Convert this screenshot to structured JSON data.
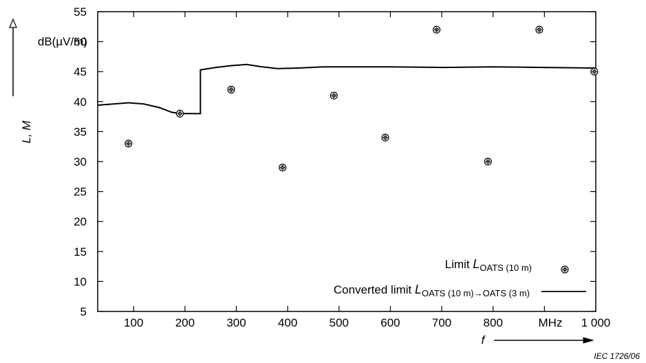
{
  "chart_data": {
    "type": "line",
    "ylabel": "L, M",
    "yunit": "dB(µV/m)",
    "xlabel": "f",
    "xunit": "MHz",
    "xlim": [
      30,
      1000
    ],
    "ylim": [
      5,
      55
    ],
    "x_ticks": [
      {
        "value": 100,
        "label": "100"
      },
      {
        "value": 200,
        "label": "200"
      },
      {
        "value": 300,
        "label": "300"
      },
      {
        "value": 400,
        "label": "400"
      },
      {
        "value": 500,
        "label": "500"
      },
      {
        "value": 600,
        "label": "600"
      },
      {
        "value": 700,
        "label": "700"
      },
      {
        "value": 800,
        "label": "800"
      },
      {
        "value": 1000,
        "label": "1 000"
      }
    ],
    "y_ticks": [
      5,
      10,
      15,
      20,
      25,
      30,
      35,
      40,
      45,
      50,
      55
    ],
    "series": [
      {
        "name": "Limit L_OATS (10 m)",
        "kind": "scatter",
        "x": [
          90,
          190,
          290,
          390,
          490,
          590,
          690,
          790,
          890,
          1000
        ],
        "y": [
          33,
          38,
          42,
          29,
          41,
          34,
          52,
          30,
          52,
          45
        ]
      },
      {
        "name": "Converted limit L_OATS (10 m)→OATS (3 m)",
        "kind": "line",
        "x": [
          30,
          60,
          90,
          120,
          150,
          175,
          200,
          230,
          230,
          260,
          290,
          320,
          350,
          380,
          420,
          470,
          520,
          600,
          700,
          800,
          900,
          1000
        ],
        "y": [
          39.4,
          39.6,
          39.8,
          39.6,
          39.0,
          38.2,
          38.0,
          38.0,
          45.3,
          45.7,
          46.0,
          46.2,
          45.8,
          45.5,
          45.6,
          45.8,
          45.8,
          45.8,
          45.7,
          45.8,
          45.7,
          45.6
        ]
      }
    ],
    "legend": {
      "placement": "bottom-right",
      "entries": [
        {
          "prefix": "Limit ",
          "symbol": "L",
          "sub": "OATS (10 m)",
          "marker": "diamond-circle"
        },
        {
          "prefix": "Converted limit ",
          "symbol": "L",
          "sub": "OATS (10 m)→OATS (3 m)",
          "marker": "line"
        }
      ]
    },
    "grid": false
  },
  "footer": {
    "code": "IEC   1726/06"
  }
}
